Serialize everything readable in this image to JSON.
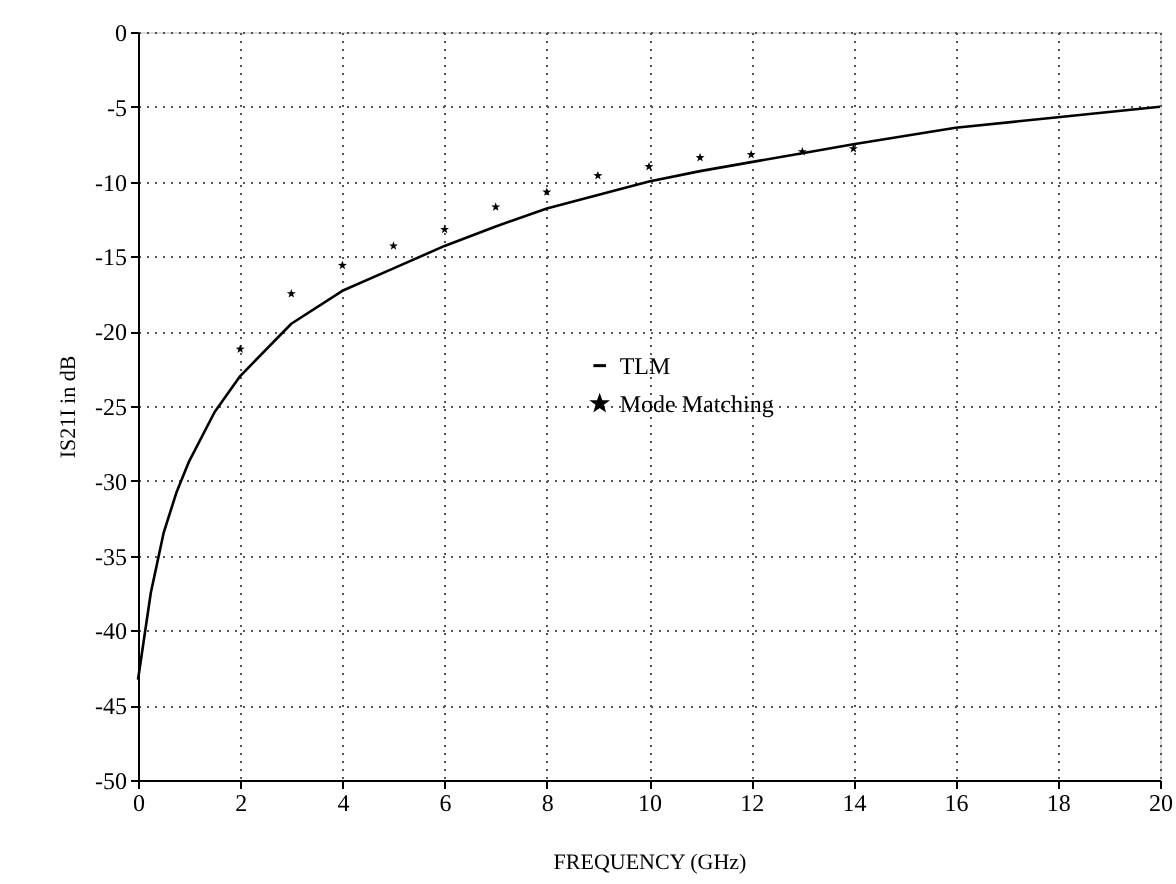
{
  "chart_data": {
    "type": "line",
    "xlabel": "FREQUENCY (GHz)",
    "ylabel": "IS21I in dB",
    "xlim": [
      0,
      20
    ],
    "xticks": [
      0,
      2,
      4,
      6,
      8,
      10,
      12,
      14,
      16,
      18,
      20
    ],
    "ylim": [
      -50,
      0
    ],
    "yticks": [
      -50,
      -45,
      -40,
      -35,
      -30,
      -25,
      -20,
      -15,
      -10,
      -5,
      0
    ],
    "grid": true,
    "legend": "center",
    "series": [
      {
        "name": "TLM",
        "color": "#000000",
        "marker": "none",
        "line_style": "solid",
        "x": [
          0,
          0.25,
          0.5,
          0.75,
          1,
          1.5,
          2,
          3,
          4,
          5,
          6,
          7,
          8,
          9,
          10,
          11,
          12,
          13,
          14,
          16,
          18,
          20
        ],
        "values": [
          -43.3,
          -37.5,
          -33.5,
          -30.8,
          -28.7,
          -25.4,
          -23,
          -19.5,
          -17.3,
          -15.8,
          -14.3,
          -13,
          -11.8,
          -10.9,
          -10,
          -9.3,
          -8.7,
          -8.1,
          -7.5,
          -6.4,
          -5.7,
          -5.0
        ]
      },
      {
        "name": "Mode Matching",
        "type": "scatter",
        "color": "#000000",
        "marker": "star",
        "x": [
          2,
          3,
          4,
          5,
          6,
          7,
          8,
          9,
          10,
          11,
          12,
          13,
          14
        ],
        "values": [
          -21.2,
          -17.5,
          -15.6,
          -14.3,
          -13.2,
          -11.7,
          -10.7,
          -9.6,
          -9.0,
          -8.4,
          -8.2,
          -8.0,
          -7.8
        ]
      }
    ]
  }
}
